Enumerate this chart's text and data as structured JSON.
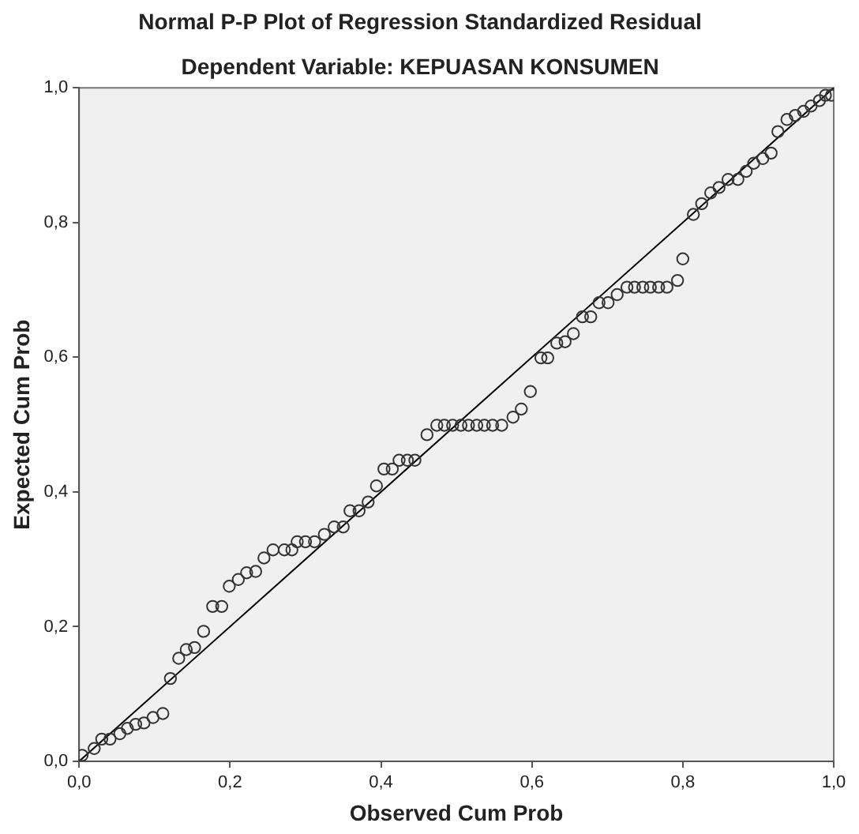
{
  "chart_data": {
    "type": "scatter",
    "title": "Normal P-P Plot of Regression Standardized Residual",
    "subtitle": "Dependent Variable: KEPUASAN KONSUMEN",
    "xlabel": "Observed Cum Prob",
    "ylabel": "Expected Cum Prob",
    "xlim": [
      0,
      1
    ],
    "ylim": [
      0,
      1
    ],
    "xticks": [
      {
        "value": 0,
        "label": "0,0"
      },
      {
        "value": 0.2,
        "label": "0,2"
      },
      {
        "value": 0.4,
        "label": "0,4"
      },
      {
        "value": 0.6,
        "label": "0,6"
      },
      {
        "value": 0.8,
        "label": "0,8"
      },
      {
        "value": 1,
        "label": "1,0"
      }
    ],
    "yticks": [
      {
        "value": 0,
        "label": "0,0"
      },
      {
        "value": 0.2,
        "label": "0,2"
      },
      {
        "value": 0.4,
        "label": "0,4"
      },
      {
        "value": 0.6,
        "label": "0,6"
      },
      {
        "value": 0.8,
        "label": "0,8"
      },
      {
        "value": 1,
        "label": "1,0"
      }
    ],
    "grid": false,
    "legend": false,
    "marker": "circle",
    "series": [
      {
        "color": "#333333",
        "x": [
          0.004,
          0.02,
          0.03,
          0.041,
          0.054,
          0.064,
          0.075,
          0.086,
          0.098,
          0.111,
          0.121,
          0.132,
          0.142,
          0.153,
          0.165,
          0.177,
          0.189,
          0.199,
          0.211,
          0.222,
          0.234,
          0.245,
          0.257,
          0.272,
          0.282,
          0.289,
          0.3,
          0.312,
          0.325,
          0.338,
          0.35,
          0.359,
          0.371,
          0.383,
          0.394,
          0.404,
          0.415,
          0.424,
          0.435,
          0.445,
          0.461,
          0.474,
          0.484,
          0.495,
          0.506,
          0.516,
          0.527,
          0.537,
          0.548,
          0.56,
          0.575,
          0.586,
          0.598,
          0.612,
          0.621,
          0.633,
          0.644,
          0.655,
          0.667,
          0.678,
          0.689,
          0.701,
          0.713,
          0.726,
          0.736,
          0.747,
          0.757,
          0.768,
          0.779,
          0.793,
          0.8,
          0.814,
          0.825,
          0.837,
          0.848,
          0.86,
          0.873,
          0.884,
          0.894,
          0.906,
          0.917,
          0.926,
          0.938,
          0.949,
          0.96,
          0.97,
          0.981,
          0.989,
          0.997
        ],
        "values": [
          0.009,
          0.019,
          0.033,
          0.033,
          0.041,
          0.049,
          0.055,
          0.057,
          0.065,
          0.071,
          0.123,
          0.153,
          0.166,
          0.169,
          0.193,
          0.23,
          0.23,
          0.26,
          0.27,
          0.28,
          0.282,
          0.302,
          0.314,
          0.314,
          0.314,
          0.326,
          0.326,
          0.326,
          0.337,
          0.348,
          0.348,
          0.372,
          0.372,
          0.385,
          0.409,
          0.434,
          0.434,
          0.447,
          0.447,
          0.447,
          0.485,
          0.499,
          0.499,
          0.499,
          0.499,
          0.499,
          0.499,
          0.499,
          0.499,
          0.499,
          0.511,
          0.523,
          0.549,
          0.599,
          0.599,
          0.621,
          0.623,
          0.635,
          0.66,
          0.66,
          0.681,
          0.681,
          0.693,
          0.704,
          0.704,
          0.704,
          0.704,
          0.704,
          0.704,
          0.714,
          0.746,
          0.812,
          0.828,
          0.844,
          0.852,
          0.864,
          0.864,
          0.876,
          0.888,
          0.895,
          0.903,
          0.935,
          0.953,
          0.959,
          0.965,
          0.973,
          0.981,
          0.989,
          0.989
        ]
      },
      {
        "type": "line",
        "marker": "none",
        "color": "#000000",
        "x": [
          0,
          1
        ],
        "values": [
          0,
          1
        ]
      }
    ]
  }
}
